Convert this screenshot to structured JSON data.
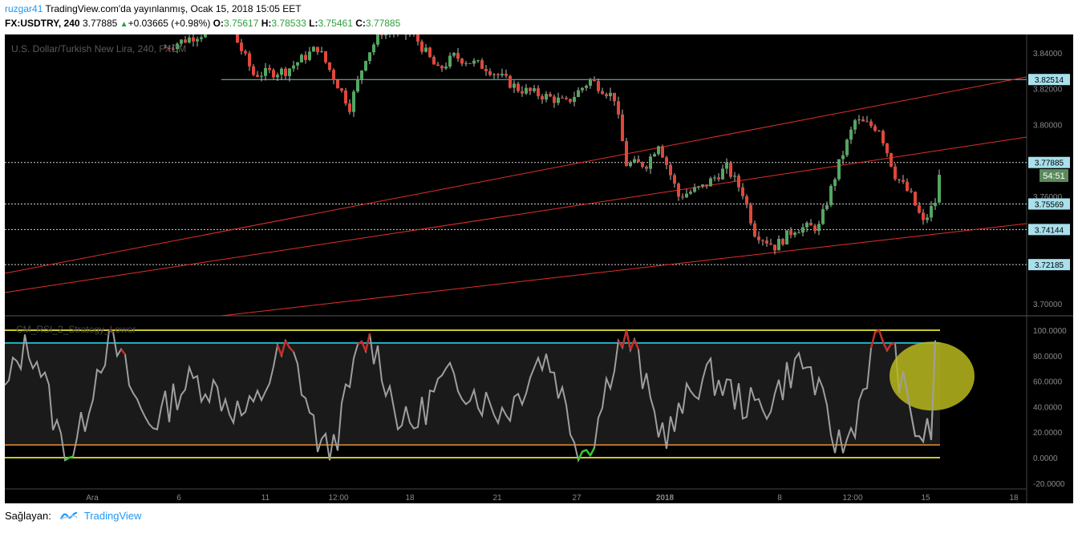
{
  "header": {
    "user": "ruzgar41",
    "published_text": "TradingView.com'da yayınlanmış, Ocak 15, 2018 15:05 EET",
    "symbol": "FX:USDTRY, 240",
    "last": "3.77885",
    "change": "+0.03665 (+0.98%)",
    "o_label": "O:",
    "o_value": "3.75617",
    "h_label": "H:",
    "h_value": "3.78533",
    "l_label": "L:",
    "l_value": "3.75461",
    "c_label": "C:",
    "c_value": "3.77885"
  },
  "price_pane": {
    "title": "U.S. Dollar/Turkish New Lira, 240, FXCM",
    "axis_ticks": [
      "3.84000",
      "3.82000",
      "3.80000",
      "3.78000",
      "3.76000",
      "3.70000"
    ],
    "price_labels": [
      {
        "value": 3.82514,
        "text": "3.82514"
      },
      {
        "value": 3.77885,
        "text": "3.77885"
      },
      {
        "value": 3.75569,
        "text": "3.75569"
      },
      {
        "value": 3.74144,
        "text": "3.74144"
      },
      {
        "value": 3.72185,
        "text": "3.72185"
      }
    ],
    "countdown": "54:51"
  },
  "indicator_pane": {
    "title": "CM_RSI_2_Strategy_Lower",
    "axis_ticks": [
      "100.0000",
      "80.0000",
      "60.0000",
      "40.0000",
      "20.0000",
      "0.0000",
      "-20.0000"
    ]
  },
  "time_axis": [
    "Ara",
    "6",
    "11",
    "12:00",
    "18",
    "21",
    "27",
    "2018",
    "8",
    "12:00",
    "15",
    "18"
  ],
  "footer": {
    "label": "Sağlayan:",
    "brand": "TradingView"
  },
  "colors": {
    "background": "#000000",
    "bull_candle": "#53a761",
    "bear_candle": "#e0473a",
    "trendline": "#e0302a",
    "rsi_line": "#9e9e9e",
    "rsi_overbought": "#c0302a",
    "rsi_oversold": "#2ecc2e",
    "level_100_0": "#c9c92a",
    "level_90": "#1fb5c8",
    "level_10": "#b8742e",
    "highlight_ellipse": "#b8b81e",
    "price_label_bg": "#a8e0ec"
  }
}
